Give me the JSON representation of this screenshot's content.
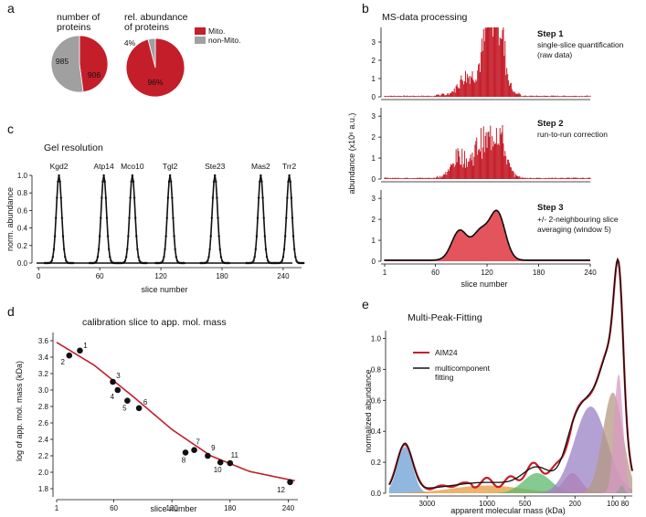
{
  "panels": {
    "a": {
      "label": "a",
      "pie1": {
        "title_l1": "number of",
        "title_l2": "proteins",
        "mito": 906,
        "non_mito": 985,
        "mito_label": "906",
        "non_label": "985"
      },
      "pie2": {
        "title_l1": "rel. abundance",
        "title_l2": "of proteins",
        "mito_pct": 96,
        "non_pct": 4,
        "mito_label": "96%",
        "non_label": "4%"
      },
      "legend": [
        {
          "label": "Mito.",
          "color": "#c41e2a"
        },
        {
          "label": "non-Mito.",
          "color": "#a0a0a0"
        }
      ]
    },
    "b": {
      "label": "b",
      "title": "MS-data processing",
      "ylabel": "abundance (x10⁶ a.u.)",
      "xlabel": "slice number",
      "x_ticks": [
        "1",
        "60",
        "120",
        "180",
        "240"
      ],
      "steps": [
        {
          "name": "Step 1",
          "desc_l1": "single-slice quantification",
          "desc_l2": "(raw data)",
          "y_ticks": [
            "0",
            "1",
            "2",
            "3"
          ],
          "ymax": 3.8
        },
        {
          "name": "Step 2",
          "desc_l1": "run-to-run correction",
          "desc_l2": "",
          "y_ticks": [
            "0",
            "1",
            "2",
            "3"
          ],
          "ymax": 3.4
        },
        {
          "name": "Step 3",
          "desc_l1": "+/- 2-neighbouring slice",
          "desc_l2": "averaging (window 5)",
          "y_ticks": [
            "0",
            "1",
            "2",
            "3"
          ],
          "ymax": 3.4
        }
      ]
    },
    "c": {
      "label": "c",
      "title": "Gel resolution",
      "ylabel": "norm. abundance",
      "xlabel": "slice number",
      "y_ticks": [
        "0.0",
        "0.2",
        "0.4",
        "0.6",
        "0.8",
        "1.0"
      ],
      "x_ticks": [
        "0",
        "60",
        "120",
        "180",
        "240"
      ]
    },
    "d": {
      "label": "d",
      "title": "calibration slice to app. mol. mass",
      "ylabel": "log of app. mol. mass (kDa)",
      "xlabel": "slice number",
      "y_ticks": [
        "1.8",
        "2.0",
        "2.2",
        "2.4",
        "2.6",
        "2.8",
        "3.0",
        "3.2",
        "3.4",
        "3.6"
      ],
      "x_ticks": [
        "1",
        "60",
        "120",
        "180",
        "240"
      ]
    },
    "e": {
      "label": "e",
      "title": "Multi-Peak-Fitting",
      "ylabel": "normalized abundance",
      "xlabel": "apparent molecular mass (kDa)",
      "y_ticks": [
        "0.0",
        "0.2",
        "0.4",
        "0.6",
        "0.8",
        "1.0"
      ],
      "x_ticks": [
        "3000",
        "1000",
        "500",
        "200",
        "100",
        "80"
      ],
      "legend": [
        {
          "label": "AIM24",
          "color": "#c41e2a"
        },
        {
          "label_l1": "multicomponent",
          "label_l2": "fitting",
          "color": "#111111"
        }
      ]
    }
  },
  "chart_data": [
    {
      "panel": "a",
      "type": "pie",
      "title": "number of proteins",
      "slices": [
        {
          "name": "Mito.",
          "value": 906
        },
        {
          "name": "non-Mito.",
          "value": 985
        }
      ]
    },
    {
      "panel": "a",
      "type": "pie",
      "title": "rel. abundance of proteins",
      "slices": [
        {
          "name": "Mito.",
          "value": 96
        },
        {
          "name": "non-Mito.",
          "value": 4
        }
      ]
    },
    {
      "panel": "b",
      "type": "area",
      "title": "MS-data processing",
      "xlabel": "slice number",
      "ylabel": "abundance (x10^6 a.u.)",
      "xlim": [
        1,
        240
      ],
      "series": [
        {
          "name": "Step 1",
          "peaks": [
            {
              "x": 95,
              "height": 1.0
            },
            {
              "x": 115,
              "height": 1.3
            },
            {
              "x": 128,
              "height": 3.5
            },
            {
              "x": 133,
              "height": 2.0
            }
          ]
        },
        {
          "name": "Step 2",
          "peaks": [
            {
              "x": 88,
              "height": 1.0
            },
            {
              "x": 112,
              "height": 1.5
            },
            {
              "x": 132,
              "height": 2.3
            }
          ]
        },
        {
          "name": "Step 3",
          "peaks": [
            {
              "x": 88,
              "height": 1.4
            },
            {
              "x": 112,
              "height": 1.3
            },
            {
              "x": 132,
              "height": 2.25
            }
          ]
        }
      ]
    },
    {
      "panel": "c",
      "type": "line",
      "title": "Gel resolution",
      "xlabel": "slice number",
      "ylabel": "norm. abundance",
      "xlim": [
        0,
        260
      ],
      "ylim": [
        0,
        1.05
      ],
      "series": [
        {
          "name": "Kgd2",
          "center": 22
        },
        {
          "name": "Atp14",
          "center": 66
        },
        {
          "name": "Mco10",
          "center": 94
        },
        {
          "name": "Tgl2",
          "center": 131
        },
        {
          "name": "Ste23",
          "center": 175
        },
        {
          "name": "Mas2",
          "center": 220
        },
        {
          "name": "Trr2",
          "center": 248
        }
      ]
    },
    {
      "panel": "d",
      "type": "scatter",
      "title": "calibration slice to app. mol. mass",
      "xlabel": "slice number",
      "ylabel": "log of app. mol. mass (kDa)",
      "xlim": [
        1,
        250
      ],
      "ylim": [
        1.7,
        3.7
      ],
      "points": [
        {
          "label": "1",
          "x": 25,
          "y": 3.48
        },
        {
          "label": "2",
          "x": 14,
          "y": 3.42
        },
        {
          "label": "3",
          "x": 59,
          "y": 3.1
        },
        {
          "label": "4",
          "x": 64,
          "y": 3.0
        },
        {
          "label": "5",
          "x": 74,
          "y": 2.87
        },
        {
          "label": "6",
          "x": 86,
          "y": 2.78
        },
        {
          "label": "7",
          "x": 143,
          "y": 2.27
        },
        {
          "label": "8",
          "x": 134,
          "y": 2.24
        },
        {
          "label": "9",
          "x": 157,
          "y": 2.2
        },
        {
          "label": "10",
          "x": 170,
          "y": 2.12
        },
        {
          "label": "11",
          "x": 180,
          "y": 2.11
        },
        {
          "label": "12",
          "x": 242,
          "y": 1.88
        }
      ],
      "fit": [
        {
          "x": 1,
          "y": 3.58
        },
        {
          "x": 40,
          "y": 3.3
        },
        {
          "x": 80,
          "y": 2.92
        },
        {
          "x": 120,
          "y": 2.52
        },
        {
          "x": 160,
          "y": 2.2
        },
        {
          "x": 200,
          "y": 2.01
        },
        {
          "x": 245,
          "y": 1.9
        }
      ]
    },
    {
      "panel": "e",
      "type": "area",
      "title": "Multi-Peak-Fitting",
      "xlabel": "apparent molecular mass (kDa)",
      "ylabel": "normalized abundance",
      "ylim": [
        0,
        1.05
      ],
      "x_scale": "log mass (decreasing left to right)",
      "components": [
        {
          "center_kDa": 4500,
          "height": 0.3,
          "color": "#6a9fd4"
        },
        {
          "center_kDa": 1000,
          "height": 0.05,
          "color": "#e69a3c"
        },
        {
          "center_kDa": 400,
          "height": 0.13,
          "color": "#5cb86b"
        },
        {
          "center_kDa": 210,
          "height": 0.13,
          "color": "#e27a8a"
        },
        {
          "center_kDa": 150,
          "height": 0.56,
          "color": "#9b82c4"
        },
        {
          "center_kDa": 100,
          "height": 0.65,
          "color": "#b59a84"
        },
        {
          "center_kDa": 90,
          "height": 0.77,
          "color": "#d89ac2"
        },
        {
          "center_kDa": 85,
          "height": 0.05,
          "color": "#999999"
        }
      ],
      "series": [
        {
          "name": "AIM24"
        },
        {
          "name": "multicomponent fitting"
        }
      ]
    }
  ]
}
